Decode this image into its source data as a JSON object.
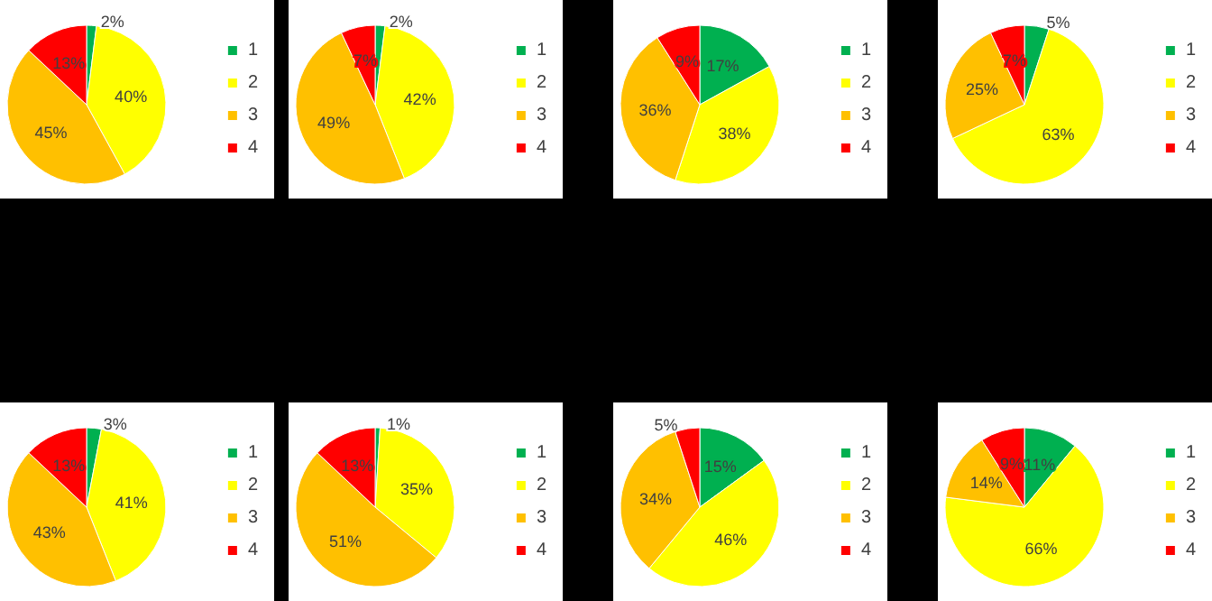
{
  "chart_data": [
    {
      "type": "pie",
      "categories": [
        "1",
        "2",
        "3",
        "4"
      ],
      "values": [
        2,
        40,
        45,
        13
      ],
      "colors": [
        "#00b050",
        "#ffff00",
        "#ffc000",
        "#ff0000"
      ],
      "value_labels": [
        "2%",
        "40%",
        "45%",
        "13%"
      ],
      "legend": "right"
    },
    {
      "type": "pie",
      "categories": [
        "1",
        "2",
        "3",
        "4"
      ],
      "values": [
        2,
        42,
        49,
        7
      ],
      "colors": [
        "#00b050",
        "#ffff00",
        "#ffc000",
        "#ff0000"
      ],
      "value_labels": [
        "2%",
        "42%",
        "49%",
        "7%"
      ],
      "legend": "right"
    },
    {
      "type": "pie",
      "categories": [
        "1",
        "2",
        "3",
        "4"
      ],
      "values": [
        17,
        38,
        36,
        9
      ],
      "colors": [
        "#00b050",
        "#ffff00",
        "#ffc000",
        "#ff0000"
      ],
      "value_labels": [
        "17%",
        "38%",
        "36%",
        "9%"
      ],
      "legend": "right"
    },
    {
      "type": "pie",
      "categories": [
        "1",
        "2",
        "3",
        "4"
      ],
      "values": [
        5,
        63,
        25,
        7
      ],
      "colors": [
        "#00b050",
        "#ffff00",
        "#ffc000",
        "#ff0000"
      ],
      "value_labels": [
        "5%",
        "63%",
        "25%",
        "7%"
      ],
      "legend": "right"
    },
    {
      "type": "pie",
      "categories": [
        "1",
        "2",
        "3",
        "4"
      ],
      "values": [
        3,
        41,
        43,
        13
      ],
      "colors": [
        "#00b050",
        "#ffff00",
        "#ffc000",
        "#ff0000"
      ],
      "value_labels": [
        "3%",
        "41%",
        "43%",
        "13%"
      ],
      "legend": "right"
    },
    {
      "type": "pie",
      "categories": [
        "1",
        "2",
        "3",
        "4"
      ],
      "values": [
        1,
        35,
        51,
        13
      ],
      "colors": [
        "#00b050",
        "#ffff00",
        "#ffc000",
        "#ff0000"
      ],
      "value_labels": [
        "1%",
        "35%",
        "51%",
        "13%"
      ],
      "legend": "right"
    },
    {
      "type": "pie",
      "categories": [
        "1",
        "2",
        "3",
        "4"
      ],
      "values": [
        15,
        46,
        34,
        5
      ],
      "colors": [
        "#00b050",
        "#ffff00",
        "#ffc000",
        "#ff0000"
      ],
      "value_labels": [
        "15%",
        "46%",
        "34%",
        "5%"
      ],
      "legend": "right"
    },
    {
      "type": "pie",
      "categories": [
        "1",
        "2",
        "3",
        "4"
      ],
      "values": [
        11,
        66,
        14,
        9
      ],
      "colors": [
        "#00b050",
        "#ffff00",
        "#ffc000",
        "#ff0000"
      ],
      "value_labels": [
        "11%",
        "66%",
        "14%",
        "9%"
      ],
      "legend": "right"
    }
  ]
}
